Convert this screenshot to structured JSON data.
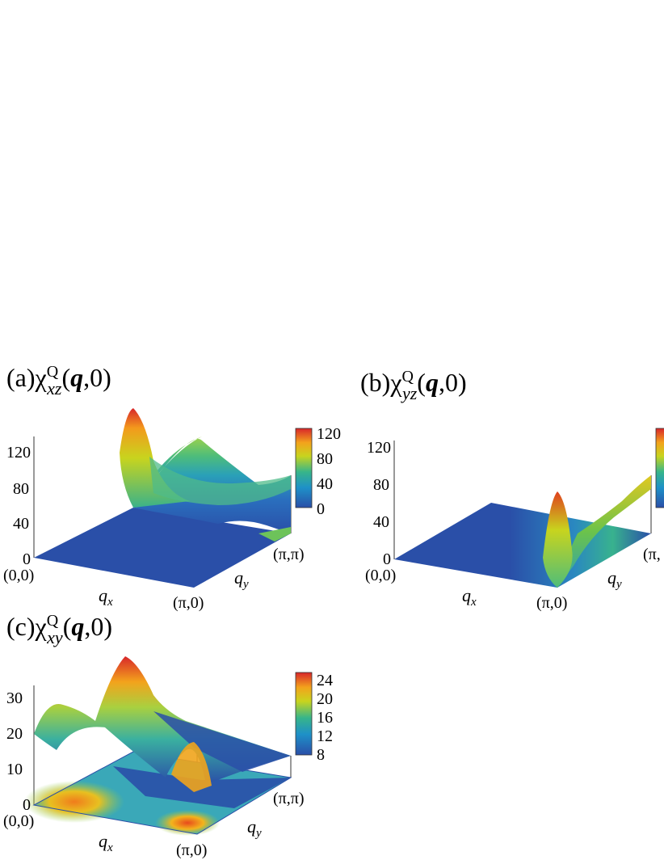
{
  "panels": [
    {
      "id": "a",
      "title_prefix": "(a)χ",
      "title_sup": "Q",
      "title_sub": "xz",
      "title_arg_open": "(",
      "title_arg_q": "q",
      "title_arg_close": ",0)",
      "z_ticks": [
        "120",
        "80",
        "40",
        "0"
      ],
      "colorbar_ticks": [
        "120",
        "80",
        "40",
        "0"
      ],
      "corner_origin": "(0,0)",
      "corner_x": "(π,0)",
      "corner_y": "(π,π)",
      "xlabel": "q",
      "xlabel_sub": "x",
      "ylabel": "q",
      "ylabel_sub": "y"
    },
    {
      "id": "b",
      "title_prefix": "(b)χ",
      "title_sup": "Q",
      "title_sub": "yz",
      "title_arg_open": "(",
      "title_arg_q": "q",
      "title_arg_close": ",0)",
      "z_ticks": [
        "120",
        "80",
        "40",
        "0"
      ],
      "corner_origin": "(0,0)",
      "corner_x": "(π,0)",
      "corner_y": "(π,",
      "xlabel": "q",
      "xlabel_sub": "x",
      "ylabel": "q",
      "ylabel_sub": "y"
    },
    {
      "id": "c",
      "title_prefix": "(c)χ",
      "title_sup": "Q",
      "title_sub": "xy",
      "title_arg_open": "(",
      "title_arg_q": "q",
      "title_arg_close": ",0)",
      "z_ticks": [
        "30",
        "20",
        "10",
        "0"
      ],
      "colorbar_ticks": [
        "24",
        "20",
        "16",
        "12",
        "8"
      ],
      "corner_origin": "(0,0)",
      "corner_x": "(π,0)",
      "corner_y": "(π,π)",
      "xlabel": "q",
      "xlabel_sub": "x",
      "ylabel": "q",
      "ylabel_sub": "y"
    }
  ],
  "colors": {
    "low": "#2a4fa8",
    "mid": "#37b58a",
    "high": "#d8262a"
  },
  "chart_data": [
    {
      "type": "surface",
      "panel": "a",
      "zlim": [
        0,
        120
      ],
      "colorbar_range": [
        0,
        120
      ],
      "x_range": [
        "(0,0)",
        "(π,0)"
      ],
      "y_range": [
        "(π,0)",
        "(π,π)"
      ],
      "features": [
        {
          "point": "near (π,0)",
          "value": 120,
          "description": "sharp peak"
        },
        {
          "point": "(π,π)",
          "value": 90
        }
      ]
    },
    {
      "type": "surface",
      "panel": "b",
      "zlim": [
        0,
        120
      ],
      "features": [
        {
          "point": "near (π,0)",
          "value": 75
        },
        {
          "point": "(π,π)",
          "value": 95
        }
      ]
    },
    {
      "type": "surface",
      "panel": "c",
      "zlim": [
        0,
        30
      ],
      "colorbar_range": [
        8,
        24
      ],
      "features": [
        {
          "point": "(0,0)",
          "value": 20
        },
        {
          "point": "mid q_x",
          "value": 30,
          "description": "peak"
        },
        {
          "point": "near (π,0)",
          "value": 22
        }
      ]
    }
  ]
}
